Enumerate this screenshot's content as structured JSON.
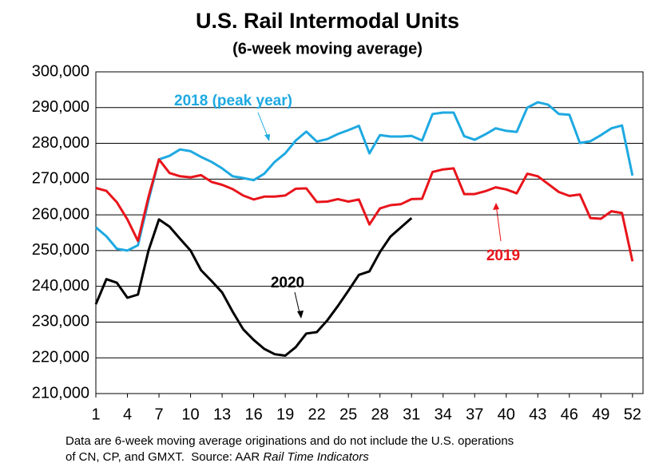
{
  "chart_data": {
    "type": "line",
    "title": "U.S. Rail Intermodal Units",
    "subtitle": "(6-week moving average)",
    "x": [
      1,
      2,
      3,
      4,
      5,
      6,
      7,
      8,
      9,
      10,
      11,
      12,
      13,
      14,
      15,
      16,
      17,
      18,
      19,
      20,
      21,
      22,
      23,
      24,
      25,
      26,
      27,
      28,
      29,
      30,
      31,
      32,
      33,
      34,
      35,
      36,
      37,
      38,
      39,
      40,
      41,
      42,
      43,
      44,
      45,
      46,
      47,
      48,
      49,
      50,
      51,
      52
    ],
    "xlim": [
      1,
      53
    ],
    "xticks": [
      1,
      4,
      7,
      10,
      13,
      16,
      19,
      22,
      25,
      28,
      31,
      34,
      37,
      40,
      43,
      46,
      49,
      52
    ],
    "ylim": [
      210000,
      300000
    ],
    "yticks": [
      {
        "value": 210000,
        "label": "210,000"
      },
      {
        "value": 220000,
        "label": "220,000"
      },
      {
        "value": 230000,
        "label": "230,000"
      },
      {
        "value": 240000,
        "label": "240,000"
      },
      {
        "value": 250000,
        "label": "250,000"
      },
      {
        "value": 260000,
        "label": "260,000"
      },
      {
        "value": 270000,
        "label": "270,000"
      },
      {
        "value": 280000,
        "label": "280,000"
      },
      {
        "value": 290000,
        "label": "290,000"
      },
      {
        "value": 300000,
        "label": "300,000"
      }
    ],
    "grid": true,
    "series": [
      {
        "name": "2018 (peak year)",
        "color": "#1ea9e1",
        "values": [
          256500,
          254000,
          250500,
          250000,
          251500,
          264000,
          275500,
          276500,
          278300,
          277800,
          276200,
          274800,
          273000,
          270800,
          270300,
          269700,
          271500,
          274800,
          277200,
          280800,
          283300,
          280500,
          281200,
          282600,
          283700,
          284900,
          277200,
          282300,
          281900,
          281900,
          282100,
          280800,
          288200,
          288600,
          288600,
          282000,
          281000,
          282500,
          284200,
          283500,
          283200,
          290000,
          291500,
          290800,
          288200,
          288000,
          280100,
          280600,
          282300,
          284200,
          285000,
          271000
        ]
      },
      {
        "name": "2019",
        "color": "#e8141b",
        "values": [
          267500,
          266700,
          263500,
          258700,
          252700,
          265000,
          275500,
          271700,
          270800,
          270500,
          271100,
          269200,
          268400,
          267200,
          265400,
          264300,
          265100,
          265100,
          265400,
          267300,
          267400,
          263600,
          263700,
          264400,
          263700,
          264300,
          257300,
          261800,
          262700,
          263000,
          264400,
          264500,
          272000,
          272700,
          273000,
          265800,
          265800,
          266600,
          267700,
          267100,
          266000,
          271500,
          270800,
          268600,
          266400,
          265300,
          265700,
          259100,
          258900,
          261000,
          260500,
          247000
        ]
      },
      {
        "name": "2020",
        "color": "#000000",
        "values": [
          235000,
          242000,
          241000,
          236800,
          237700,
          250000,
          258700,
          256700,
          253300,
          250000,
          244500,
          241500,
          238300,
          232900,
          228000,
          225000,
          222500,
          221000,
          220600,
          223000,
          226800,
          227200,
          230500,
          234500,
          238800,
          243200,
          244200,
          249600,
          253900,
          256500,
          259100,
          null,
          null,
          null,
          null,
          null,
          null,
          null,
          null,
          null,
          null,
          null,
          null,
          null,
          null,
          null,
          null,
          null,
          null,
          null,
          null,
          null
        ]
      }
    ],
    "note": [
      "Data are 6-week moving average originations and do not include the U.S. operations",
      "of CN, CP, and GMXT.  Source: AAR ",
      "Rail Time Indicators"
    ]
  }
}
